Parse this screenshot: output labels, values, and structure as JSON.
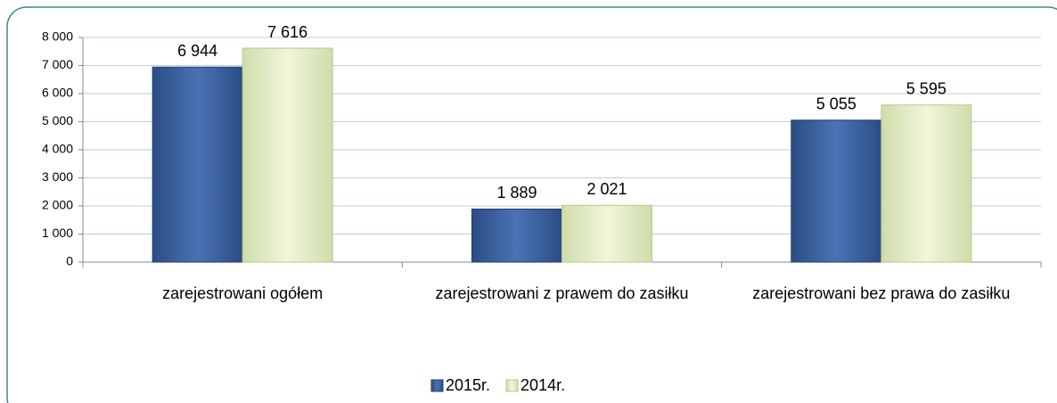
{
  "chart_data": {
    "type": "bar",
    "categories": [
      "zarejestrowani ogółem",
      "zarejestrowani z prawem do zasiłku",
      "zarejestrowani bez prawa do zasiłku"
    ],
    "series": [
      {
        "name": "2015r.",
        "color": "#3a5f9e",
        "values": [
          6944,
          1889,
          5055
        ],
        "value_labels": [
          "6 944",
          "1 889",
          "5 055"
        ]
      },
      {
        "name": "2014r.",
        "color": "#e3eec4",
        "values": [
          7616,
          2021,
          5595
        ],
        "value_labels": [
          "7 616",
          "2 021",
          "5 595"
        ]
      }
    ],
    "ylim": [
      0,
      8000
    ],
    "yticks": [
      0,
      {
        "value": 1000,
        "label": "1 000"
      },
      {
        "value": 2000,
        "label": "2 000"
      },
      {
        "value": 3000,
        "label": "3 000"
      },
      {
        "value": 4000,
        "label": "4 000"
      },
      {
        "value": 5000,
        "label": "5 000"
      },
      {
        "value": 6000,
        "label": "6 000"
      },
      {
        "value": 7000,
        "label": "7 000"
      },
      {
        "value": 8000,
        "label": "8 000"
      }
    ],
    "grid": true,
    "legend": "bottom"
  }
}
